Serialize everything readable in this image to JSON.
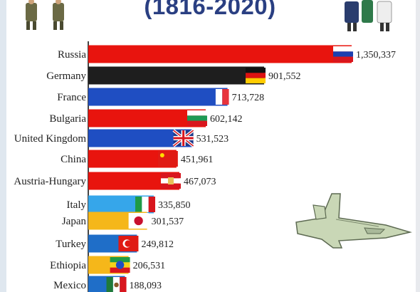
{
  "chart_data": {
    "type": "bar",
    "orientation": "horizontal",
    "title": "(1816-2020)",
    "categories": [
      "Russia",
      "Germany",
      "France",
      "Bulgaria",
      "United Kingdom",
      "China",
      "Austria-Hungary",
      "Italy",
      "Japan",
      "Turkey",
      "Ethiopia",
      "Mexico"
    ],
    "values": [
      1350337,
      901552,
      713728,
      602142,
      531523,
      451961,
      467073,
      335850,
      301537,
      249812,
      206531,
      188093
    ],
    "value_labels": [
      "1,350,337",
      "901,552",
      "713,728",
      "602,142",
      "531,523",
      "451,961",
      "467,073",
      "335,850",
      "301,537",
      "249,812",
      "206,531",
      "188,093"
    ],
    "colors": [
      "#e8140e",
      "#1e1e1e",
      "#1f4ec2",
      "#e8140e",
      "#1f4ec2",
      "#e8140e",
      "#e8140e",
      "#36a6ea",
      "#f5b71a",
      "#1f6ec8",
      "#f5b71a",
      "#1f6ec8"
    ],
    "flags": [
      "russia-flag",
      "germany-flag",
      "france-flag",
      "bulgaria-flag",
      "united-kingdom-flag",
      "china-flag",
      "austria-hungary-flag",
      "italy-flag",
      "japan-flag",
      "turkey-flag",
      "ethiopia-flag",
      "mexico-flag"
    ],
    "legend": "none",
    "grid": false
  }
}
